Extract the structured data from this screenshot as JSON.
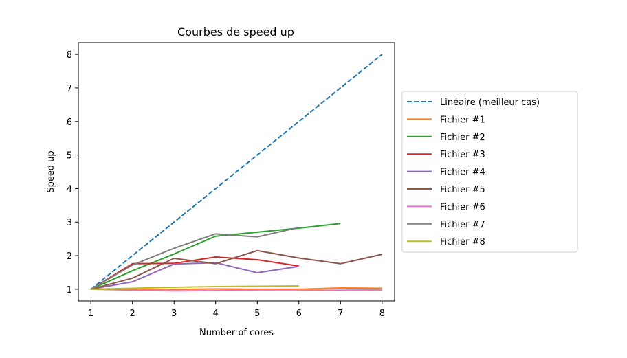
{
  "chart_data": {
    "type": "line",
    "title": "Courbes de speed up",
    "xlabel": "Number of cores",
    "ylabel": "Speed up",
    "xlim": [
      0.7,
      8.3
    ],
    "ylim": [
      0.65,
      8.35
    ],
    "xticks": [
      "1",
      "2",
      "3",
      "4",
      "5",
      "6",
      "7",
      "8"
    ],
    "yticks": [
      "1",
      "2",
      "3",
      "4",
      "5",
      "6",
      "7",
      "8"
    ],
    "grid": false,
    "legend_position": "right, outside plot",
    "series": [
      {
        "name": "Linéaire (meilleur cas)",
        "color": "#1f77b4",
        "dashed": true,
        "x": [
          1,
          2,
          3,
          4,
          5,
          6,
          7,
          8
        ],
        "y": [
          1,
          2,
          3,
          4,
          5,
          6,
          7,
          8
        ]
      },
      {
        "name": "Fichier #1",
        "color": "#ff7f0e",
        "dashed": false,
        "x": [
          1,
          2,
          3,
          4,
          5,
          6,
          7,
          8
        ],
        "y": [
          1.0,
          1.0,
          0.99,
          1.01,
          1.0,
          1.0,
          1.04,
          1.03
        ]
      },
      {
        "name": "Fichier #2",
        "color": "#2ca02c",
        "dashed": false,
        "x": [
          1,
          2,
          3,
          4,
          5,
          6,
          7
        ],
        "y": [
          1.0,
          1.55,
          2.05,
          2.58,
          2.7,
          2.82,
          2.96
        ]
      },
      {
        "name": "Fichier #3",
        "color": "#d62728",
        "dashed": false,
        "x": [
          1,
          2,
          3,
          4,
          5,
          6
        ],
        "y": [
          1.0,
          1.76,
          1.77,
          1.96,
          1.88,
          1.69
        ]
      },
      {
        "name": "Fichier #4",
        "color": "#9467bd",
        "dashed": false,
        "x": [
          1,
          2,
          3,
          4,
          5,
          6
        ],
        "y": [
          1.0,
          1.22,
          1.75,
          1.79,
          1.49,
          1.68
        ]
      },
      {
        "name": "Fichier #5",
        "color": "#8c564b",
        "dashed": false,
        "x": [
          1,
          2,
          3,
          4,
          5,
          6,
          7,
          8
        ],
        "y": [
          1.0,
          1.33,
          1.92,
          1.76,
          2.15,
          1.93,
          1.76,
          2.04
        ]
      },
      {
        "name": "Fichier #6",
        "color": "#e377c2",
        "dashed": false,
        "x": [
          1,
          2,
          3,
          4,
          5,
          6,
          7,
          8
        ],
        "y": [
          1.0,
          0.97,
          0.95,
          0.96,
          0.98,
          0.98,
          0.97,
          0.98
        ]
      },
      {
        "name": "Fichier #7",
        "color": "#7f7f7f",
        "dashed": false,
        "x": [
          1,
          2,
          3,
          4,
          5,
          6
        ],
        "y": [
          1.0,
          1.72,
          2.22,
          2.65,
          2.56,
          2.84
        ]
      },
      {
        "name": "Fichier #8",
        "color": "#bcbd22",
        "dashed": false,
        "x": [
          1,
          2,
          3,
          4,
          5,
          6
        ],
        "y": [
          1.0,
          1.03,
          1.06,
          1.08,
          1.09,
          1.1
        ]
      }
    ]
  }
}
